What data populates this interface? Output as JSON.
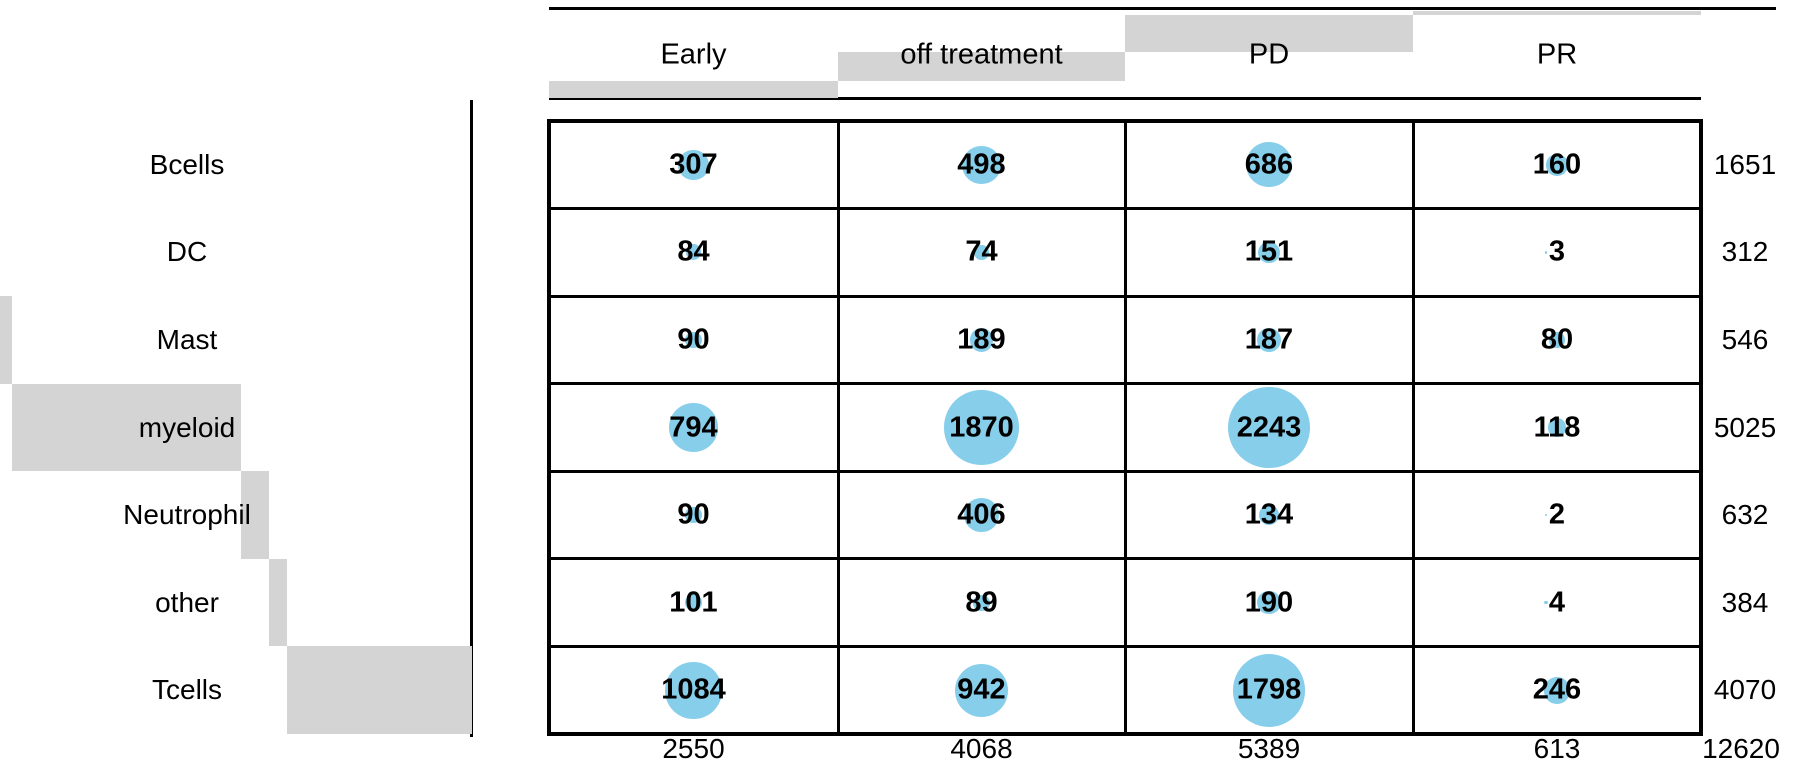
{
  "chart_data": {
    "type": "table",
    "subtype": "balloon-plot-contingency-table",
    "title": "",
    "columns": [
      "Early",
      "off treatment",
      "PD",
      "PR"
    ],
    "rows": [
      "Bcells",
      "DC",
      "Mast",
      "myeloid",
      "Neutrophil",
      "other",
      "Tcells"
    ],
    "values": [
      [
        307,
        498,
        686,
        160
      ],
      [
        84,
        74,
        151,
        3
      ],
      [
        90,
        189,
        187,
        80
      ],
      [
        794,
        1870,
        2243,
        118
      ],
      [
        90,
        406,
        134,
        2
      ],
      [
        101,
        89,
        190,
        4
      ],
      [
        1084,
        942,
        1798,
        246
      ]
    ],
    "row_totals": [
      1651,
      312,
      546,
      5025,
      632,
      384,
      4070
    ],
    "col_totals": [
      2550,
      4068,
      5389,
      613
    ],
    "grand_total": "12620",
    "legend_position": "none",
    "grid": "on",
    "encoding": {
      "balloon_note": "circle area proportional to cell value, radius = 0.86 * sqrt(value) px",
      "margin_note": "gray cascade bars show cumulative row/column fractions of grand total"
    },
    "colors": {
      "balloon_fill": "#87CEEB",
      "margin_bar_fill": "#d4d4d4",
      "line_color": "#000000",
      "text_color": "#000000"
    }
  }
}
